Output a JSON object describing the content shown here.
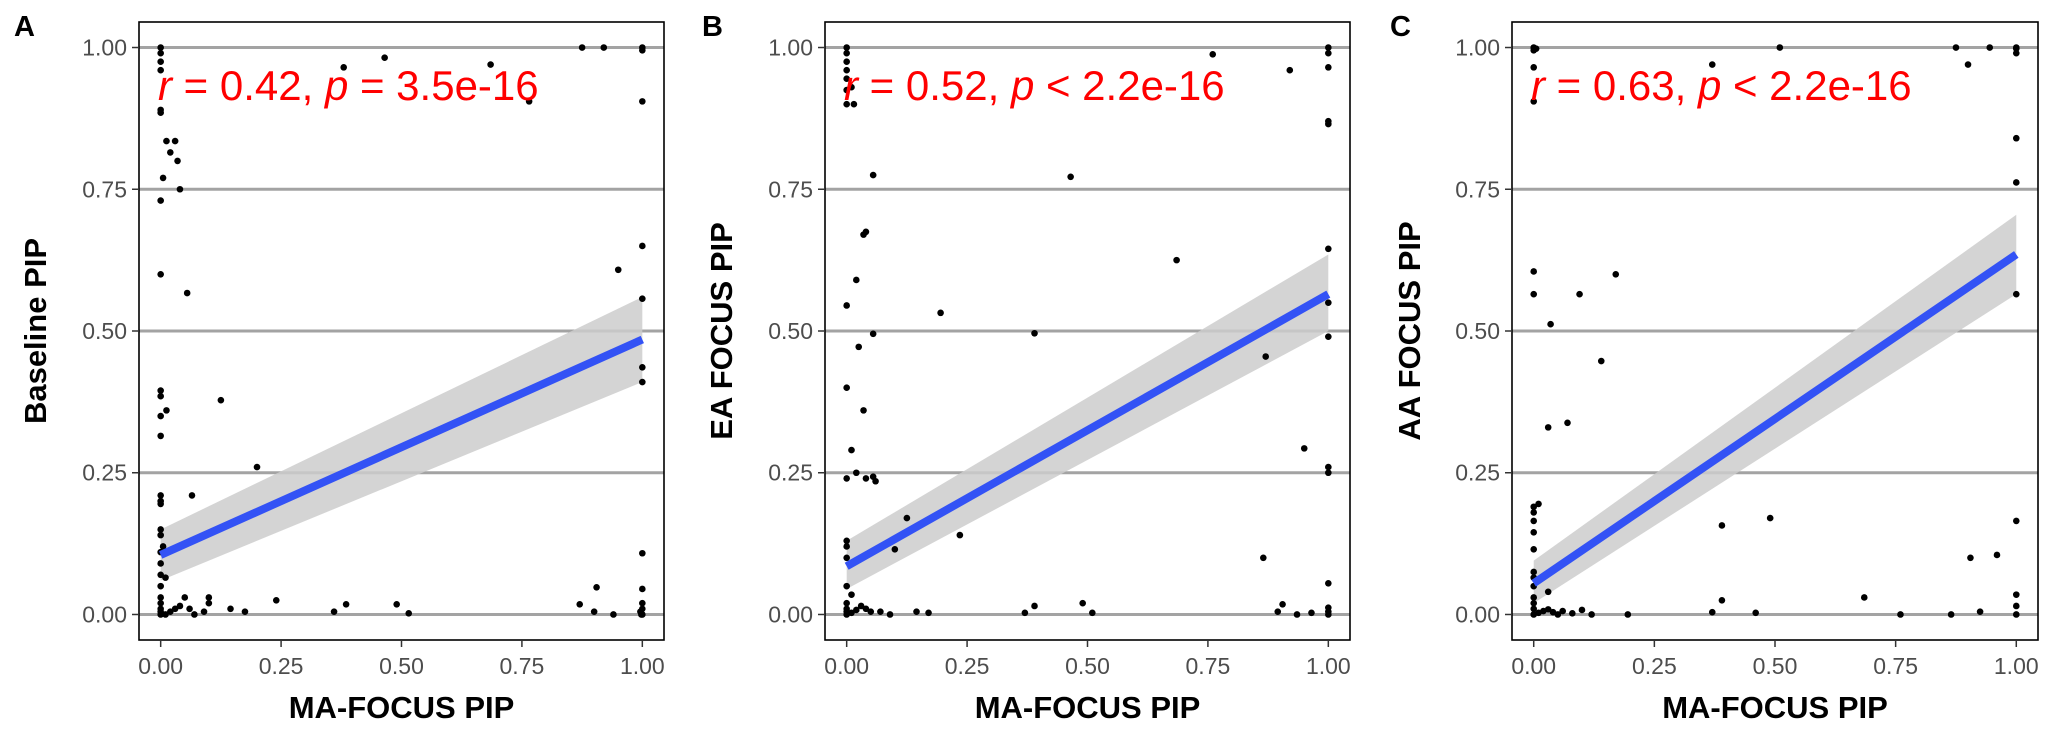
{
  "chart_data": [
    {
      "panel": "A",
      "type": "scatter",
      "xlabel": "MA-FOCUS PIP",
      "ylabel": "Baseline PIP",
      "xlim": [
        0,
        1
      ],
      "ylim": [
        0,
        1
      ],
      "xticks": [
        "0.00",
        "0.25",
        "0.50",
        "0.75",
        "1.00"
      ],
      "yticks": [
        "0.00",
        "0.25",
        "0.50",
        "0.75",
        "1.00"
      ],
      "grid": "horizontal",
      "annotation": {
        "r_label": "r",
        "r_text": " = 0.42, ",
        "p_label": "p",
        "p_text": " = 3.5e-16"
      },
      "fit": {
        "x": [
          0,
          1
        ],
        "y": [
          0.105,
          0.485
        ],
        "ci_lower": [
          0.06,
          0.41
        ],
        "ci_upper": [
          0.15,
          0.56
        ]
      },
      "points": [
        [
          0.0,
          1.0
        ],
        [
          0.0,
          0.99
        ],
        [
          0.0,
          0.975
        ],
        [
          0.0,
          0.96
        ],
        [
          0.0,
          0.89
        ],
        [
          0.0,
          0.885
        ],
        [
          0.005,
          0.77
        ],
        [
          0.0,
          0.73
        ],
        [
          0.012,
          0.835
        ],
        [
          0.02,
          0.815
        ],
        [
          0.03,
          0.835
        ],
        [
          0.035,
          0.8
        ],
        [
          0.04,
          0.75
        ],
        [
          0.0,
          0.6
        ],
        [
          0.055,
          0.567
        ],
        [
          0.0,
          0.395
        ],
        [
          0.0,
          0.385
        ],
        [
          0.0,
          0.35
        ],
        [
          0.012,
          0.36
        ],
        [
          0.0,
          0.315
        ],
        [
          0.125,
          0.378
        ],
        [
          0.0,
          0.21
        ],
        [
          0.0,
          0.2
        ],
        [
          0.0,
          0.195
        ],
        [
          0.065,
          0.21
        ],
        [
          0.2,
          0.26
        ],
        [
          0.0,
          0.15
        ],
        [
          0.0,
          0.14
        ],
        [
          0.005,
          0.12
        ],
        [
          0.0,
          0.11
        ],
        [
          0.0,
          0.09
        ],
        [
          0.0,
          0.07
        ],
        [
          0.01,
          0.065
        ],
        [
          0.0,
          0.05
        ],
        [
          0.0,
          0.03
        ],
        [
          0.0,
          0.02
        ],
        [
          0.0,
          0.01
        ],
        [
          0.0,
          0.005
        ],
        [
          0.0,
          0.0
        ],
        [
          0.01,
          0.0
        ],
        [
          0.02,
          0.005
        ],
        [
          0.03,
          0.01
        ],
        [
          0.04,
          0.015
        ],
        [
          0.05,
          0.03
        ],
        [
          0.06,
          0.01
        ],
        [
          0.07,
          0.0
        ],
        [
          0.09,
          0.005
        ],
        [
          0.1,
          0.02
        ],
        [
          0.1,
          0.03
        ],
        [
          0.145,
          0.01
        ],
        [
          0.175,
          0.005
        ],
        [
          0.24,
          0.025
        ],
        [
          0.36,
          0.005
        ],
        [
          0.385,
          0.018
        ],
        [
          0.49,
          0.018
        ],
        [
          0.515,
          0.002
        ],
        [
          0.87,
          0.018
        ],
        [
          0.9,
          0.005
        ],
        [
          0.94,
          0.0
        ],
        [
          0.905,
          0.048
        ],
        [
          0.38,
          0.965
        ],
        [
          0.465,
          0.982
        ],
        [
          0.685,
          0.97
        ],
        [
          0.765,
          0.905
        ],
        [
          0.875,
          1.0
        ],
        [
          0.92,
          1.0
        ],
        [
          1.0,
          1.0
        ],
        [
          1.0,
          0.995
        ],
        [
          1.0,
          0.905
        ],
        [
          0.95,
          0.608
        ],
        [
          1.0,
          0.65
        ],
        [
          1.0,
          0.557
        ],
        [
          1.0,
          0.436
        ],
        [
          1.0,
          0.41
        ],
        [
          1.0,
          0.108
        ],
        [
          1.0,
          0.045
        ],
        [
          1.0,
          0.02
        ],
        [
          1.0,
          0.01
        ],
        [
          1.0,
          0.0
        ],
        [
          0.996,
          0.005
        ],
        [
          0.998,
          0.0
        ]
      ]
    },
    {
      "panel": "B",
      "type": "scatter",
      "xlabel": "MA-FOCUS PIP",
      "ylabel": "EA FOCUS PIP",
      "xlim": [
        0,
        1
      ],
      "ylim": [
        0,
        1
      ],
      "xticks": [
        "0.00",
        "0.25",
        "0.50",
        "0.75",
        "1.00"
      ],
      "yticks": [
        "0.00",
        "0.25",
        "0.50",
        "0.75",
        "1.00"
      ],
      "grid": "horizontal",
      "annotation": {
        "r_label": "r",
        "r_text": " = 0.52, ",
        "p_label": "p",
        "p_text": " < 2.2e-16"
      },
      "fit": {
        "x": [
          0,
          1
        ],
        "y": [
          0.085,
          0.565
        ],
        "ci_lower": [
          0.045,
          0.5
        ],
        "ci_upper": [
          0.13,
          0.635
        ]
      },
      "points": [
        [
          0.0,
          1.0
        ],
        [
          0.0,
          0.99
        ],
        [
          0.0,
          0.975
        ],
        [
          0.0,
          0.96
        ],
        [
          0.0,
          0.945
        ],
        [
          0.0,
          0.925
        ],
        [
          0.0,
          0.9
        ],
        [
          0.01,
          0.93
        ],
        [
          0.015,
          0.9
        ],
        [
          0.055,
          0.775
        ],
        [
          0.02,
          0.59
        ],
        [
          0.0,
          0.545
        ],
        [
          0.035,
          0.67
        ],
        [
          0.04,
          0.675
        ],
        [
          0.025,
          0.472
        ],
        [
          0.055,
          0.495
        ],
        [
          0.0,
          0.4
        ],
        [
          0.035,
          0.36
        ],
        [
          0.01,
          0.29
        ],
        [
          0.04,
          0.24
        ],
        [
          0.055,
          0.243
        ],
        [
          0.06,
          0.235
        ],
        [
          0.02,
          0.25
        ],
        [
          0.0,
          0.24
        ],
        [
          0.0,
          0.13
        ],
        [
          0.0,
          0.12
        ],
        [
          0.0,
          0.1
        ],
        [
          0.0,
          0.05
        ],
        [
          0.01,
          0.035
        ],
        [
          0.0,
          0.02
        ],
        [
          0.0,
          0.01
        ],
        [
          0.0,
          0.005
        ],
        [
          0.0,
          0.0
        ],
        [
          0.01,
          0.003
        ],
        [
          0.02,
          0.008
        ],
        [
          0.03,
          0.015
        ],
        [
          0.04,
          0.01
        ],
        [
          0.05,
          0.005
        ],
        [
          0.07,
          0.005
        ],
        [
          0.09,
          0.0
        ],
        [
          0.1,
          0.115
        ],
        [
          0.125,
          0.17
        ],
        [
          0.145,
          0.005
        ],
        [
          0.17,
          0.003
        ],
        [
          0.195,
          0.532
        ],
        [
          0.235,
          0.14
        ],
        [
          0.37,
          0.003
        ],
        [
          0.39,
          0.015
        ],
        [
          0.39,
          0.496
        ],
        [
          0.465,
          0.772
        ],
        [
          0.49,
          0.02
        ],
        [
          0.51,
          0.003
        ],
        [
          0.685,
          0.625
        ],
        [
          0.76,
          0.988
        ],
        [
          0.865,
          0.1
        ],
        [
          0.87,
          0.455
        ],
        [
          0.895,
          0.005
        ],
        [
          0.905,
          0.018
        ],
        [
          0.92,
          0.96
        ],
        [
          0.935,
          0.0
        ],
        [
          0.95,
          0.293
        ],
        [
          0.965,
          0.003
        ],
        [
          1.0,
          1.0
        ],
        [
          1.0,
          0.99
        ],
        [
          1.0,
          0.965
        ],
        [
          1.0,
          0.87
        ],
        [
          1.0,
          0.865
        ],
        [
          1.0,
          0.645
        ],
        [
          1.0,
          0.55
        ],
        [
          1.0,
          0.49
        ],
        [
          1.0,
          0.26
        ],
        [
          1.0,
          0.25
        ],
        [
          1.0,
          0.055
        ],
        [
          1.0,
          0.012
        ],
        [
          1.0,
          0.005
        ],
        [
          1.0,
          0.0
        ]
      ]
    },
    {
      "panel": "C",
      "type": "scatter",
      "xlabel": "MA-FOCUS PIP",
      "ylabel": "AA FOCUS PIP",
      "xlim": [
        0,
        1
      ],
      "ylim": [
        0,
        1
      ],
      "xticks": [
        "0.00",
        "0.25",
        "0.50",
        "0.75",
        "1.00"
      ],
      "yticks": [
        "0.00",
        "0.25",
        "0.50",
        "0.75",
        "1.00"
      ],
      "grid": "horizontal",
      "annotation": {
        "r_label": "r",
        "r_text": " = 0.63, ",
        "p_label": "p",
        "p_text": " < 2.2e-16"
      },
      "fit": {
        "x": [
          0,
          1
        ],
        "y": [
          0.055,
          0.635
        ],
        "ci_lower": [
          0.02,
          0.565
        ],
        "ci_upper": [
          0.095,
          0.705
        ]
      },
      "points": [
        [
          0.0,
          1.0
        ],
        [
          0.0,
          0.995
        ],
        [
          0.005,
          0.998
        ],
        [
          0.0,
          0.905
        ],
        [
          0.0,
          0.965
        ],
        [
          0.0,
          0.605
        ],
        [
          0.0,
          0.565
        ],
        [
          0.035,
          0.512
        ],
        [
          0.03,
          0.33
        ],
        [
          0.07,
          0.338
        ],
        [
          0.095,
          0.565
        ],
        [
          0.14,
          0.447
        ],
        [
          0.17,
          0.6
        ],
        [
          0.0,
          0.18
        ],
        [
          0.0,
          0.19
        ],
        [
          0.01,
          0.195
        ],
        [
          0.0,
          0.165
        ],
        [
          0.0,
          0.145
        ],
        [
          0.0,
          0.115
        ],
        [
          0.0,
          0.075
        ],
        [
          0.0,
          0.065
        ],
        [
          0.0,
          0.05
        ],
        [
          0.0,
          0.03
        ],
        [
          0.0,
          0.02
        ],
        [
          0.0,
          0.01
        ],
        [
          0.0,
          0.0
        ],
        [
          0.01,
          0.003
        ],
        [
          0.02,
          0.006
        ],
        [
          0.03,
          0.009
        ],
        [
          0.04,
          0.004
        ],
        [
          0.05,
          0.0
        ],
        [
          0.06,
          0.006
        ],
        [
          0.08,
          0.002
        ],
        [
          0.1,
          0.008
        ],
        [
          0.12,
          0.0
        ],
        [
          0.03,
          0.04
        ],
        [
          0.195,
          0.0
        ],
        [
          0.37,
          0.004
        ],
        [
          0.39,
          0.157
        ],
        [
          0.39,
          0.025
        ],
        [
          0.46,
          0.003
        ],
        [
          0.49,
          0.17
        ],
        [
          0.51,
          1.0
        ],
        [
          0.685,
          0.03
        ],
        [
          0.76,
          0.0
        ],
        [
          0.865,
          0.0
        ],
        [
          0.875,
          1.0
        ],
        [
          0.9,
          0.97
        ],
        [
          0.905,
          0.1
        ],
        [
          0.925,
          0.005
        ],
        [
          0.945,
          1.0
        ],
        [
          0.96,
          0.105
        ],
        [
          0.37,
          0.97
        ],
        [
          1.0,
          1.0
        ],
        [
          1.0,
          0.998
        ],
        [
          1.0,
          0.99
        ],
        [
          1.0,
          0.84
        ],
        [
          1.0,
          0.762
        ],
        [
          1.0,
          0.565
        ],
        [
          1.0,
          0.165
        ],
        [
          1.0,
          0.035
        ],
        [
          1.0,
          0.015
        ],
        [
          1.0,
          0.0
        ]
      ]
    }
  ],
  "colors": {
    "points": "#000000",
    "fit_line": "#3352f5",
    "ci_band": "#cccccc",
    "grid": "#a3a3a3",
    "annotation": "#ff0000",
    "frame": "#000000"
  }
}
